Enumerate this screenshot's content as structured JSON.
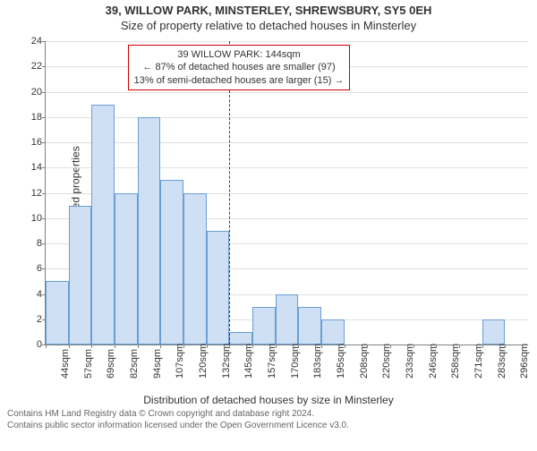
{
  "header": {
    "title": "39, WILLOW PARK, MINSTERLEY, SHREWSBURY, SY5 0EH",
    "subtitle": "Size of property relative to detached houses in Minsterley"
  },
  "chart": {
    "type": "histogram",
    "ylabel": "Number of detached properties",
    "xlabel": "Distribution of detached houses by size in Minsterley",
    "background_color": "#ffffff",
    "grid_color": "#e0e0e0",
    "axis_color": "#808080",
    "bar_fill": "#cfe0f5",
    "bar_border": "#6a9fd4",
    "label_fontsize": 12,
    "tick_fontsize": 11,
    "ylim": [
      0,
      24
    ],
    "ytick_step": 2,
    "bar_gap_ratio": 0.0,
    "categories": [
      "44sqm",
      "57sqm",
      "69sqm",
      "82sqm",
      "94sqm",
      "107sqm",
      "120sqm",
      "132sqm",
      "145sqm",
      "157sqm",
      "170sqm",
      "183sqm",
      "195sqm",
      "208sqm",
      "220sqm",
      "233sqm",
      "246sqm",
      "258sqm",
      "271sqm",
      "283sqm",
      "296sqm"
    ],
    "values": [
      5,
      11,
      19,
      12,
      18,
      13,
      12,
      9,
      1,
      3,
      4,
      3,
      2,
      0,
      0,
      0,
      0,
      0,
      0,
      2,
      0
    ],
    "marker": {
      "index": 8,
      "align": "left",
      "color": "#cc0000"
    },
    "annotation": {
      "lines": [
        "39 WILLOW PARK: 144sqm",
        "← 87% of detached houses are smaller (97)",
        "13% of semi-detached houses are larger (15) →"
      ],
      "border_color": "#cc0000",
      "text_color": "#333333"
    }
  },
  "footer": {
    "line1": "Contains HM Land Registry data © Crown copyright and database right 2024.",
    "line2": "Contains public sector information licensed under the Open Government Licence v3.0."
  }
}
